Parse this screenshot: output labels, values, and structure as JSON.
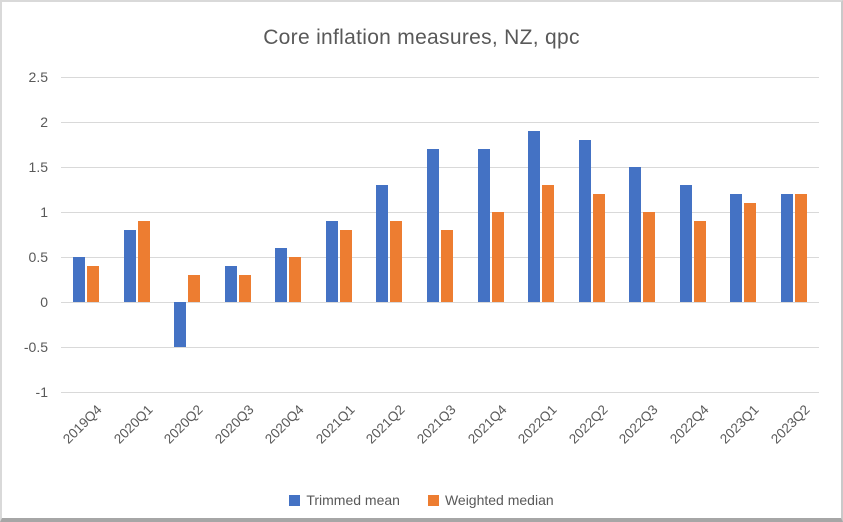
{
  "window": {
    "background": "#ffffff",
    "border_color": "#d9d9d9",
    "bottom_edge_color": "#a6a6a6"
  },
  "chart_data": {
    "type": "bar",
    "title": "Core inflation measures, NZ, qpc",
    "categories": [
      "2019Q4",
      "2020Q1",
      "2020Q2",
      "2020Q3",
      "2020Q4",
      "2021Q1",
      "2021Q2",
      "2021Q3",
      "2021Q4",
      "2022Q1",
      "2022Q2",
      "2022Q3",
      "2022Q4",
      "2023Q1",
      "2023Q2"
    ],
    "series": [
      {
        "name": "Trimmed mean",
        "color": "#4472C4",
        "values": [
          0.5,
          0.8,
          -0.5,
          0.4,
          0.6,
          0.9,
          1.3,
          1.7,
          1.7,
          1.9,
          1.8,
          1.5,
          1.3,
          1.2,
          1.2
        ]
      },
      {
        "name": "Weighted median",
        "color": "#ED7D31",
        "values": [
          0.4,
          0.9,
          0.3,
          0.3,
          0.5,
          0.8,
          0.9,
          0.8,
          1.0,
          1.3,
          1.2,
          1.0,
          0.9,
          1.1,
          1.2
        ]
      }
    ],
    "xlabel": "",
    "ylabel": "",
    "ylim": [
      -1,
      2.5
    ],
    "ytick_step": 0.5,
    "yticks": [
      "2.5",
      "2",
      "1.5",
      "1",
      "0.5",
      "0",
      "-0.5",
      "-1"
    ],
    "grid": true,
    "gridline_color": "#d9d9d9",
    "axis_text_color": "#595959",
    "title_color": "#595959",
    "legend_position": "bottom"
  }
}
